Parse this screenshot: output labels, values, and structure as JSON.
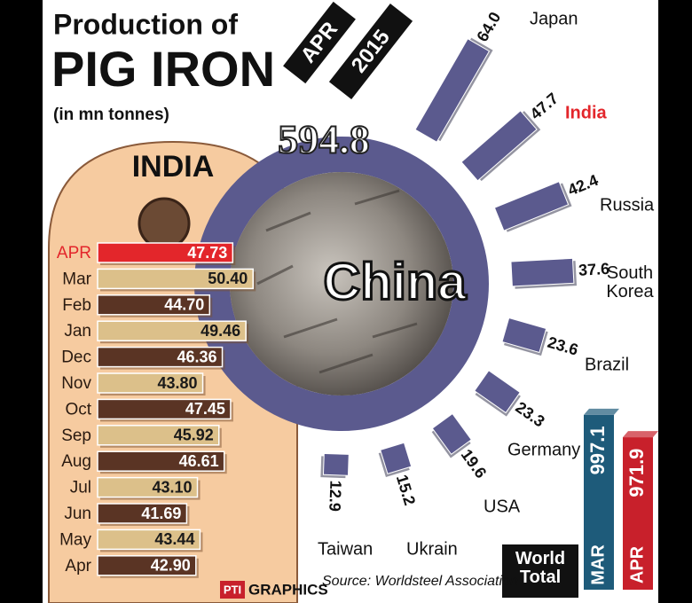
{
  "title": {
    "line1": "Production of",
    "line2": "PIG IRON",
    "units": "(in mn tonnes)"
  },
  "period": {
    "month": "APR",
    "year": "2015"
  },
  "source": "Source: Worldsteel Association",
  "credit": {
    "logo": "PTI",
    "text": "GRAPHICS"
  },
  "chart_data": [
    {
      "type": "radial-bar",
      "center_label": "China",
      "center_value": 594.8,
      "center_color": "#5b5a8e",
      "categories": [
        "Japan",
        "India",
        "Russia",
        "South Korea",
        "Brazil",
        "Germany",
        "USA",
        "Ukrain",
        "Taiwan"
      ],
      "values": [
        64.0,
        47.7,
        42.4,
        37.6,
        23.6,
        23.3,
        19.6,
        15.2,
        12.9
      ],
      "value_labels": [
        "64.0",
        "47.7",
        "42.4",
        "37.6",
        "23.6",
        "23.3",
        "19.6",
        "15.2",
        "12.9"
      ],
      "color": "#5b5a8e",
      "highlight": "India",
      "highlight_color": "#e3262b"
    },
    {
      "type": "hbar",
      "title": "INDIA",
      "categories": [
        "APR",
        "Mar",
        "Feb",
        "Jan",
        "Dec",
        "Nov",
        "Oct",
        "Sep",
        "Aug",
        "Jul",
        "Jun",
        "May",
        "Apr"
      ],
      "values": [
        47.73,
        50.4,
        44.7,
        49.46,
        46.36,
        43.8,
        47.45,
        45.92,
        46.61,
        43.1,
        41.69,
        43.44,
        42.9
      ],
      "value_labels": [
        "47.73",
        "50.40",
        "44.70",
        "49.46",
        "46.36",
        "43.80",
        "47.45",
        "45.92",
        "46.61",
        "43.10",
        "41.69",
        "43.44",
        "42.90"
      ],
      "colors": [
        "#e3262b",
        "#dcc08a",
        "#5a3424",
        "#dcc08a",
        "#5a3424",
        "#dcc08a",
        "#5a3424",
        "#dcc08a",
        "#5a3424",
        "#dcc08a",
        "#5a3424",
        "#dcc08a",
        "#5a3424"
      ],
      "highlight": "APR",
      "highlight_color": "#e3262b",
      "xlim": [
        30,
        52
      ]
    },
    {
      "type": "vbar",
      "title": "World Total",
      "categories": [
        "MAR",
        "APR"
      ],
      "values": [
        997.1,
        971.9
      ],
      "colors": [
        "#1e5b7a",
        "#c8202b"
      ],
      "ylim": [
        800,
        1000
      ]
    }
  ]
}
